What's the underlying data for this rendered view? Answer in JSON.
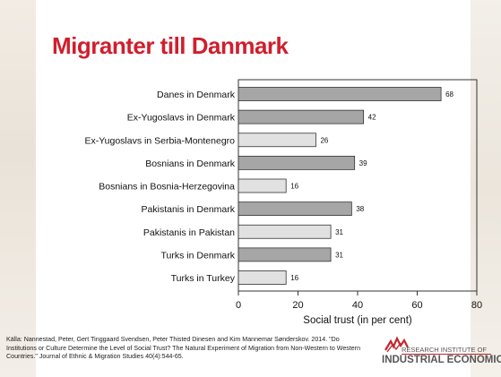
{
  "title": "Migranter till Danmark",
  "chart_data": {
    "type": "bar",
    "orientation": "horizontal",
    "categories": [
      "Danes in Denmark",
      "Ex-Yugoslavs in Denmark",
      "Ex-Yugoslavs in Serbia-Montenegro",
      "Bosnians in Denmark",
      "Bosnians in Bosnia-Herzegovina",
      "Pakistanis in Denmark",
      "Pakistanis in Pakistan",
      "Turks in Denmark",
      "Turks in Turkey"
    ],
    "values": [
      68,
      42,
      26,
      39,
      16,
      38,
      31,
      31,
      16
    ],
    "value_labels": [
      "68",
      "42",
      "26",
      "39",
      "16",
      "38",
      "31",
      "31",
      "16"
    ],
    "group": [
      "denmark",
      "denmark",
      "origin",
      "denmark",
      "origin",
      "denmark",
      "origin",
      "denmark",
      "origin"
    ],
    "xlabel": "Social trust (in per cent)",
    "xlim": [
      0,
      80
    ],
    "xticks": [
      "0",
      "20",
      "40",
      "60",
      "80"
    ],
    "colors": {
      "denmark": "#a6a6a6",
      "origin": "#e1e1e1",
      "stroke": "#333333"
    },
    "grid": false,
    "legend": "none"
  },
  "source": "Källa: Nannestad, Peter, Gert Tinggaard Svendsen, Peter Thisted Dinesen and Kim Mannemar Sønderskov. 2014. \"Do Institutions or Culture Determine the Level of Social Trust? The Natural Experiment of Migration from Non-Western to Western Countries.\" Journal of Ethnic & Migration Studies 40(4):544-65.",
  "logo": {
    "line1": "RESEARCH INSTITUTE OF",
    "line2": "INDUSTRIAL ECONOMICS",
    "color": "#c2272d"
  }
}
